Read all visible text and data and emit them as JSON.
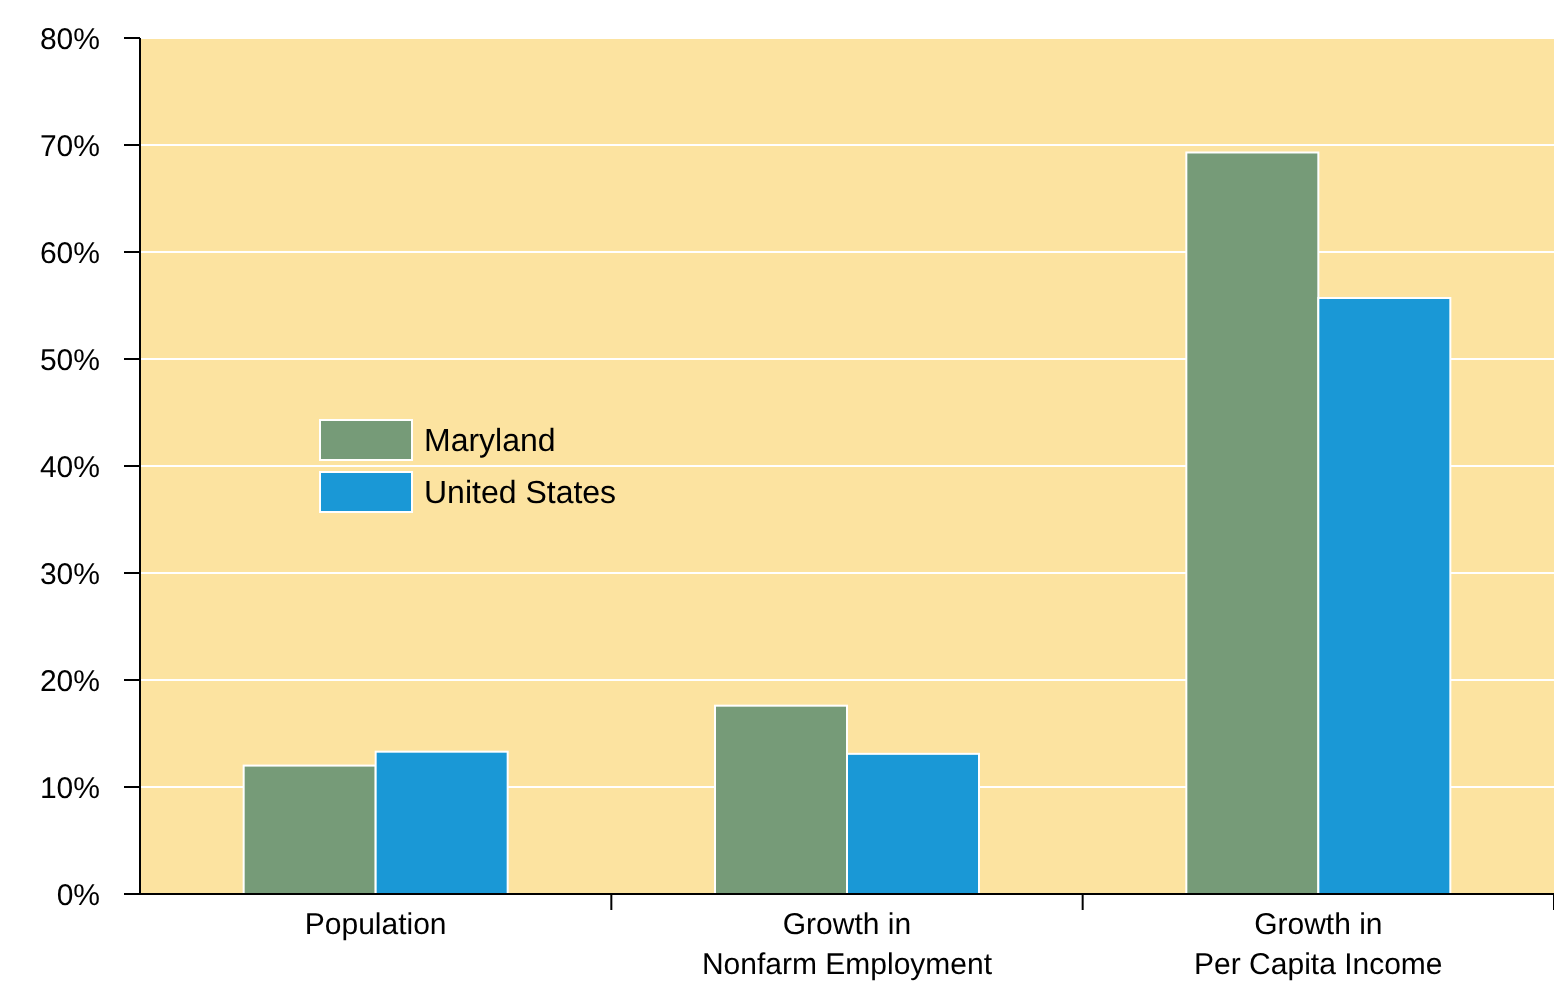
{
  "chart_data": {
    "type": "bar",
    "categories": [
      "Population",
      "Growth in\nNonfarm Employment",
      "Growth in\nPer Capita Income"
    ],
    "series": [
      {
        "name": "Maryland",
        "color": "#769b78",
        "values": [
          12,
          17.6,
          69.3
        ]
      },
      {
        "name": "United States",
        "color": "#1a98d6",
        "values": [
          13.3,
          13.1,
          55.7
        ]
      }
    ],
    "ylim": [
      0,
      80
    ],
    "yticks": [
      {
        "value": 0,
        "label": "0%"
      },
      {
        "value": 10,
        "label": "10%"
      },
      {
        "value": 20,
        "label": "20%"
      },
      {
        "value": 30,
        "label": "30%"
      },
      {
        "value": 40,
        "label": "40%"
      },
      {
        "value": 50,
        "label": "50%"
      },
      {
        "value": 60,
        "label": "60%"
      },
      {
        "value": 70,
        "label": "70%"
      },
      {
        "value": 80,
        "label": "80%"
      }
    ],
    "grid": "y",
    "legend": "left"
  }
}
